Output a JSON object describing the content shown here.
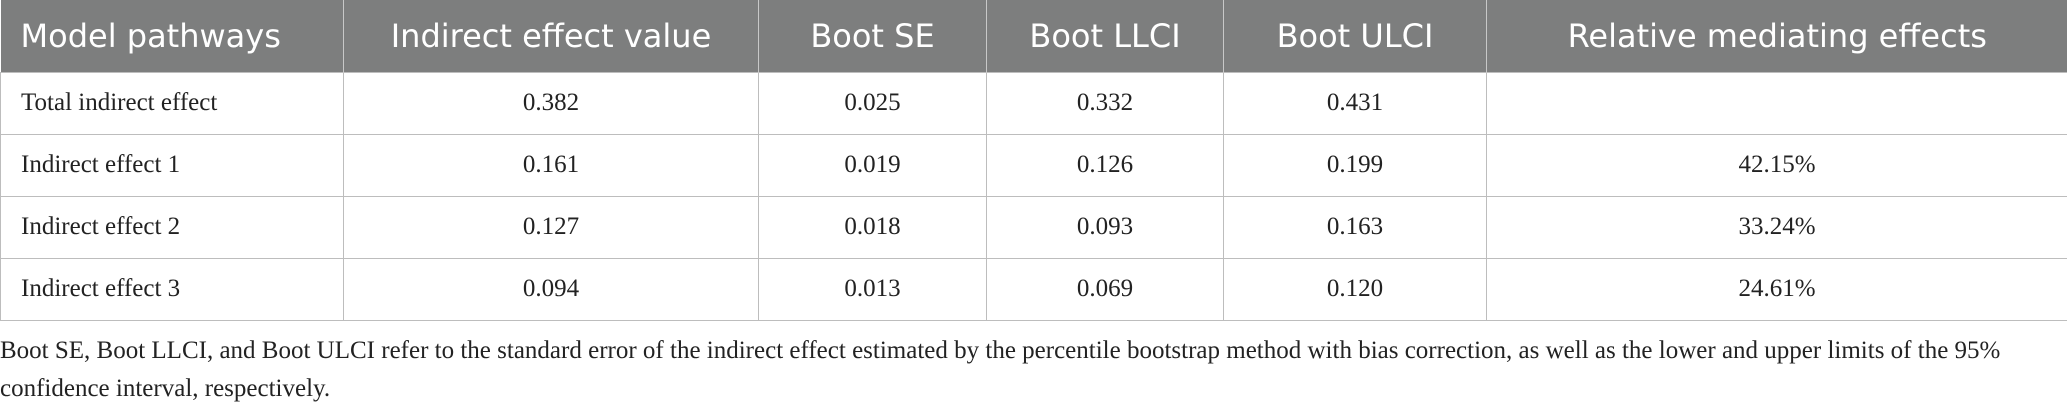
{
  "table": {
    "columns": [
      "Model pathways",
      "Indirect effect value",
      "Boot SE",
      "Boot LLCI",
      "Boot ULCI",
      "Relative mediating effects"
    ],
    "rows": [
      [
        "Total indirect effect",
        "0.382",
        "0.025",
        "0.332",
        "0.431"
      ],
      [
        "Indirect effect 1",
        "0.161",
        "0.019",
        "0.126",
        "0.199",
        "42.15%"
      ],
      [
        "Indirect effect 2",
        "0.127",
        "0.018",
        "0.093",
        "0.163",
        "33.24%"
      ],
      [
        "Indirect effect 3",
        "0.094",
        "0.013",
        "0.069",
        "0.120",
        "24.61%"
      ]
    ]
  },
  "footnote": "Boot SE, Boot LLCI, and Boot ULCI refer to the standard error of the indirect effect estimated by the percentile bootstrap method with bias correction, as well as the lower and upper limits of the 95% confidence interval, respectively."
}
